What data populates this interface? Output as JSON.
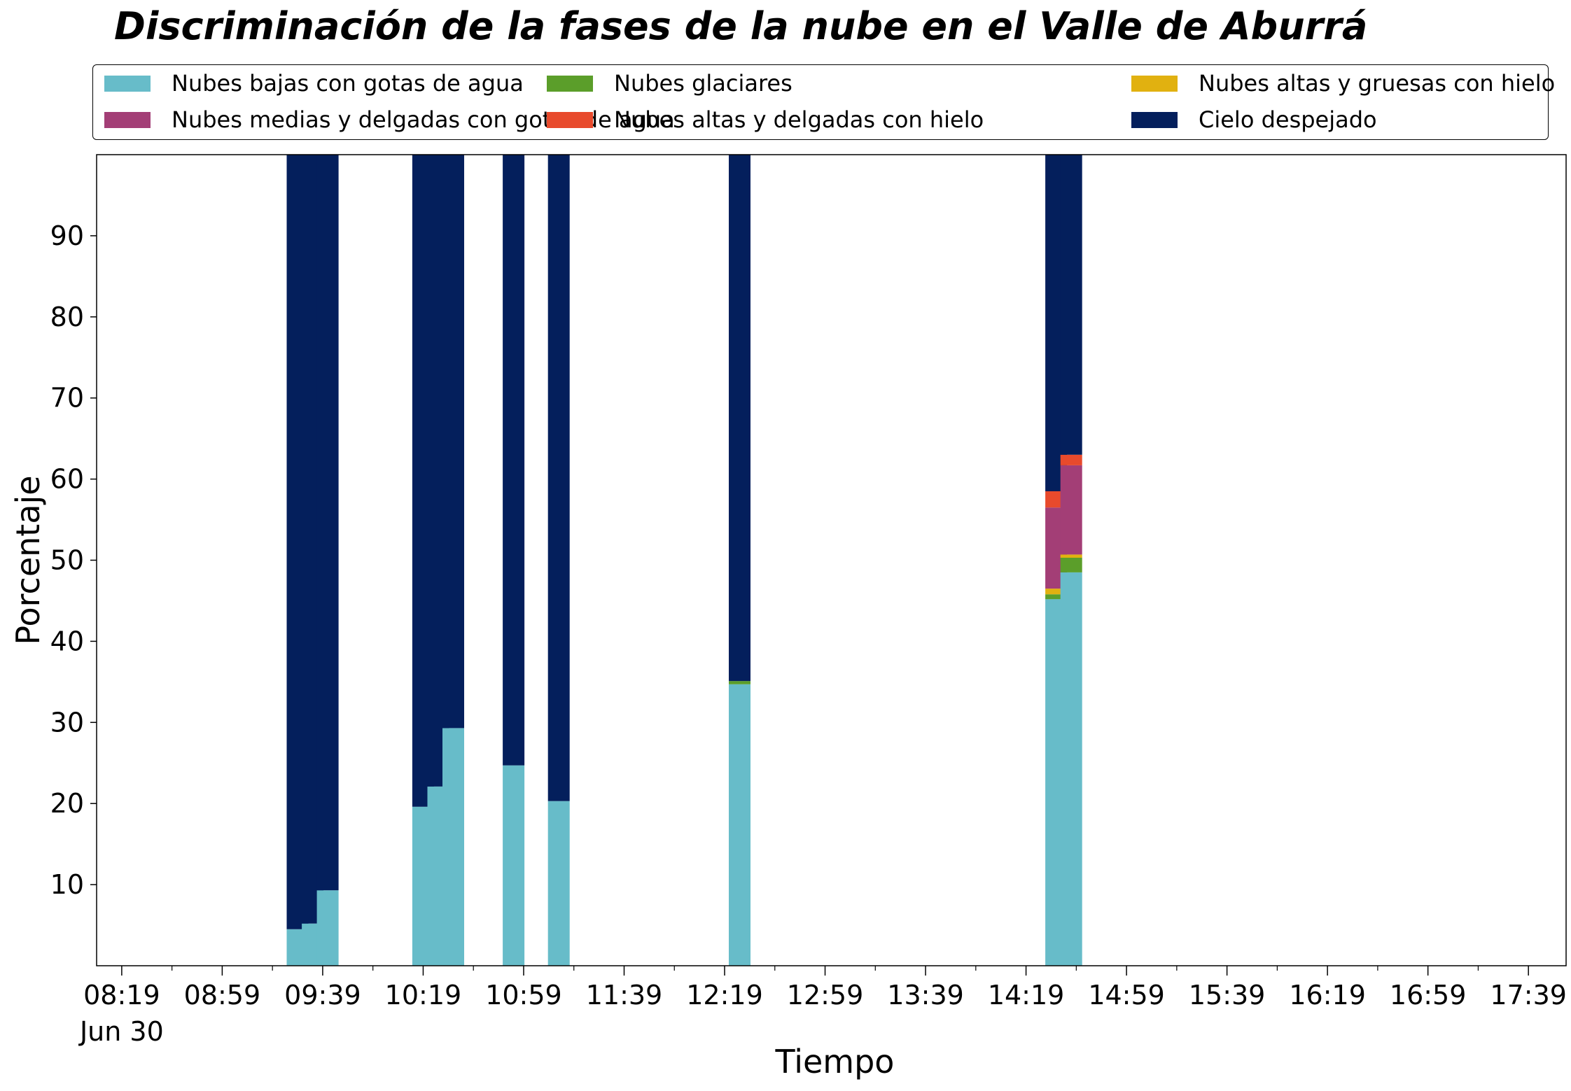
{
  "chart_data": {
    "type": "bar",
    "stacked": true,
    "title": "Discriminación de la fases de la nube en el Valle de Aburrá",
    "xlabel": "Tiempo",
    "ylabel": "Porcentaje",
    "ylim": [
      0,
      100
    ],
    "yticks": [
      "10",
      "20",
      "30",
      "40",
      "50",
      "60",
      "70",
      "80",
      "90"
    ],
    "xticks": [
      "08:19",
      "08:59",
      "09:39",
      "10:19",
      "10:59",
      "11:39",
      "12:19",
      "12:59",
      "13:39",
      "14:19",
      "14:59",
      "15:39",
      "16:19",
      "16:59",
      "17:39"
    ],
    "x_date_label": "Jun 30",
    "grid": false,
    "legend_position": "top",
    "categories": [
      "09:29",
      "09:35",
      "09:41",
      "10:19",
      "10:25",
      "10:31",
      "10:55",
      "11:13",
      "12:25",
      "14:31",
      "14:37"
    ],
    "series": [
      {
        "name": "Nubes bajas con gotas de agua",
        "color": "#67bcc9",
        "values": [
          4.5,
          5.2,
          9.3,
          19.6,
          22.1,
          29.3,
          24.7,
          20.3,
          34.7,
          45.2,
          48.5
        ]
      },
      {
        "name": "Nubes glaciares",
        "color": "#5b9e2a",
        "values": [
          0,
          0,
          0,
          0,
          0,
          0,
          0,
          0,
          0.4,
          0.6,
          1.8
        ]
      },
      {
        "name": "Nubes altas y gruesas con hielo",
        "color": "#e1b110",
        "values": [
          0,
          0,
          0,
          0,
          0,
          0,
          0,
          0,
          0,
          0.7,
          0.4
        ]
      },
      {
        "name": "Nubes medias y delgadas con gotas de agua",
        "color": "#a33e76",
        "values": [
          0,
          0,
          0,
          0,
          0,
          0,
          0,
          0,
          0,
          10.0,
          11.0
        ]
      },
      {
        "name": "Nubes altas y delgadas con hielo",
        "color": "#e84a2c",
        "values": [
          0,
          0,
          0,
          0,
          0,
          0,
          0,
          0,
          0,
          2.0,
          1.3
        ]
      },
      {
        "name": "Cielo despejado",
        "color": "#041f5c",
        "values": [
          95.5,
          94.8,
          90.7,
          80.4,
          77.9,
          70.7,
          75.3,
          79.7,
          64.9,
          41.5,
          37.0
        ]
      }
    ]
  }
}
